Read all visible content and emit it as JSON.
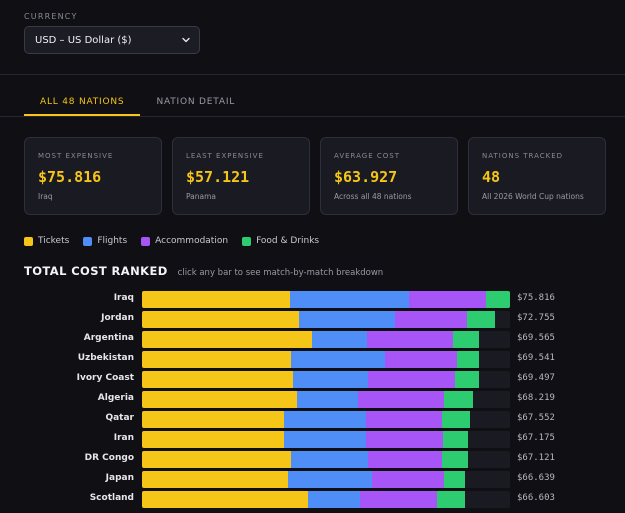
{
  "currency": {
    "label": "CURRENCY",
    "selected": "USD – US Dollar ($)"
  },
  "tabs": [
    {
      "label": "ALL 48 NATIONS",
      "active": true
    },
    {
      "label": "NATION DETAIL",
      "active": false
    }
  ],
  "cards": [
    {
      "label": "MOST EXPENSIVE",
      "value": "$75.816",
      "sub": "Iraq"
    },
    {
      "label": "LEAST EXPENSIVE",
      "value": "$57.121",
      "sub": "Panama"
    },
    {
      "label": "AVERAGE COST",
      "value": "$63.927",
      "sub": "Across all 48 nations"
    },
    {
      "label": "NATIONS TRACKED",
      "value": "48",
      "sub": "All 2026 World Cup nations"
    }
  ],
  "legend": [
    {
      "label": "Tickets",
      "color": "#f5c518"
    },
    {
      "label": "Flights",
      "color": "#4f8ef7"
    },
    {
      "label": "Accommodation",
      "color": "#a855f7"
    },
    {
      "label": "Food & Drinks",
      "color": "#2ecc71"
    }
  ],
  "section": {
    "title": "TOTAL COST RANKED",
    "hint": "click any bar to see match-by-match breakdown"
  },
  "chart_data": {
    "type": "bar",
    "orientation": "horizontal",
    "stacked": true,
    "title": "TOTAL COST RANKED",
    "categories": [
      "Iraq",
      "Jordan",
      "Argentina",
      "Uzbekistan",
      "Ivory Coast",
      "Algeria",
      "Qatar",
      "Iran",
      "DR Congo",
      "Japan",
      "Scotland"
    ],
    "value_labels": [
      "$75.816",
      "$72.755",
      "$69.565",
      "$69.541",
      "$69.497",
      "$68.219",
      "$67.552",
      "$67.175",
      "$67.121",
      "$66.639",
      "$66.603"
    ],
    "totals": [
      75816,
      72755,
      69565,
      69541,
      69497,
      68219,
      67552,
      67175,
      67121,
      66639,
      66603
    ],
    "xlim": [
      0,
      75816
    ],
    "series": [
      {
        "name": "Tickets",
        "color": "#f5c518",
        "values": [
          30400,
          32300,
          35000,
          30800,
          31200,
          32000,
          29300,
          29300,
          30800,
          30000,
          34100
        ]
      },
      {
        "name": "Flights",
        "color": "#4f8ef7",
        "values": [
          24600,
          19800,
          11400,
          19300,
          15300,
          12400,
          16900,
          16800,
          15800,
          17400,
          10900
        ]
      },
      {
        "name": "Accommodation",
        "color": "#a855f7",
        "values": [
          15800,
          14800,
          17700,
          14900,
          18000,
          17800,
          15700,
          16000,
          15200,
          14900,
          15700
        ]
      },
      {
        "name": "Food & Drinks",
        "color": "#2ecc71",
        "values": [
          5000,
          5800,
          5400,
          4500,
          5000,
          6000,
          5600,
          5000,
          5300,
          4300,
          5900
        ]
      }
    ]
  }
}
